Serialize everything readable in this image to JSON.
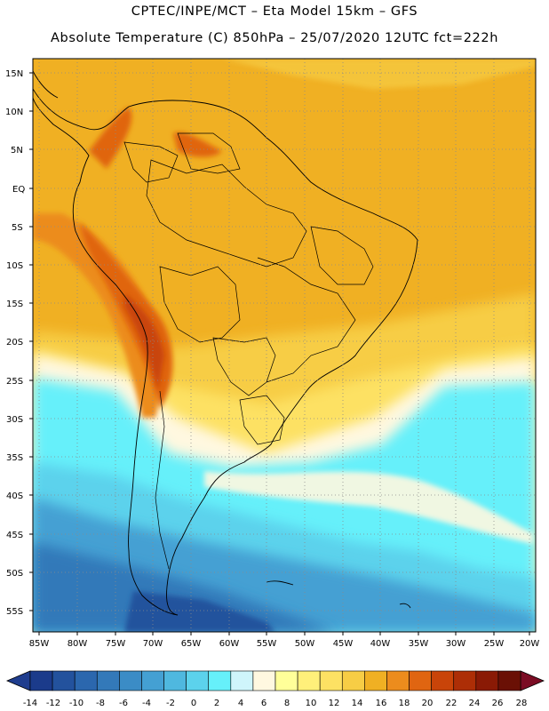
{
  "header": {
    "line1": "CPTEC/INPE/MCT –  Eta Model 15km – GFS",
    "line2": "Absolute Temperature (C) 850hPa – 25/07/2020 12UTC fct=222h"
  },
  "map": {
    "lat_labels": [
      "15N",
      "10N",
      "5N",
      "EQ",
      "5S",
      "10S",
      "15S",
      "20S",
      "25S",
      "30S",
      "35S",
      "40S",
      "45S",
      "50S",
      "55S"
    ],
    "lon_labels": [
      "85W",
      "80W",
      "75W",
      "70W",
      "65W",
      "60W",
      "55W",
      "50W",
      "45W",
      "40W",
      "35W",
      "30W",
      "25W",
      "20W"
    ],
    "ocean_color": "#f0b023"
  },
  "colorbar": {
    "labels": [
      "-14",
      "-12",
      "-10",
      "-8",
      "-6",
      "-4",
      "-2",
      "0",
      "2",
      "4",
      "6",
      "8",
      "10",
      "12",
      "14",
      "16",
      "18",
      "20",
      "22",
      "24",
      "26",
      "28"
    ],
    "colors": [
      "#1b3b8b",
      "#23529d",
      "#2b67ae",
      "#3379b9",
      "#3b8cc6",
      "#44a0d3",
      "#4fb8df",
      "#5cd2ec",
      "#66f0fa",
      "#cff5fb",
      "#fff8e0",
      "#ffff99",
      "#fff07a",
      "#fde163",
      "#f7cd45",
      "#f0b023",
      "#ec8c1d",
      "#e06511",
      "#c94409",
      "#ad2e06",
      "#8a1a05",
      "#6a1005"
    ],
    "min_arrow": "#1f3d8e",
    "max_arrow": "#7b0c24"
  }
}
